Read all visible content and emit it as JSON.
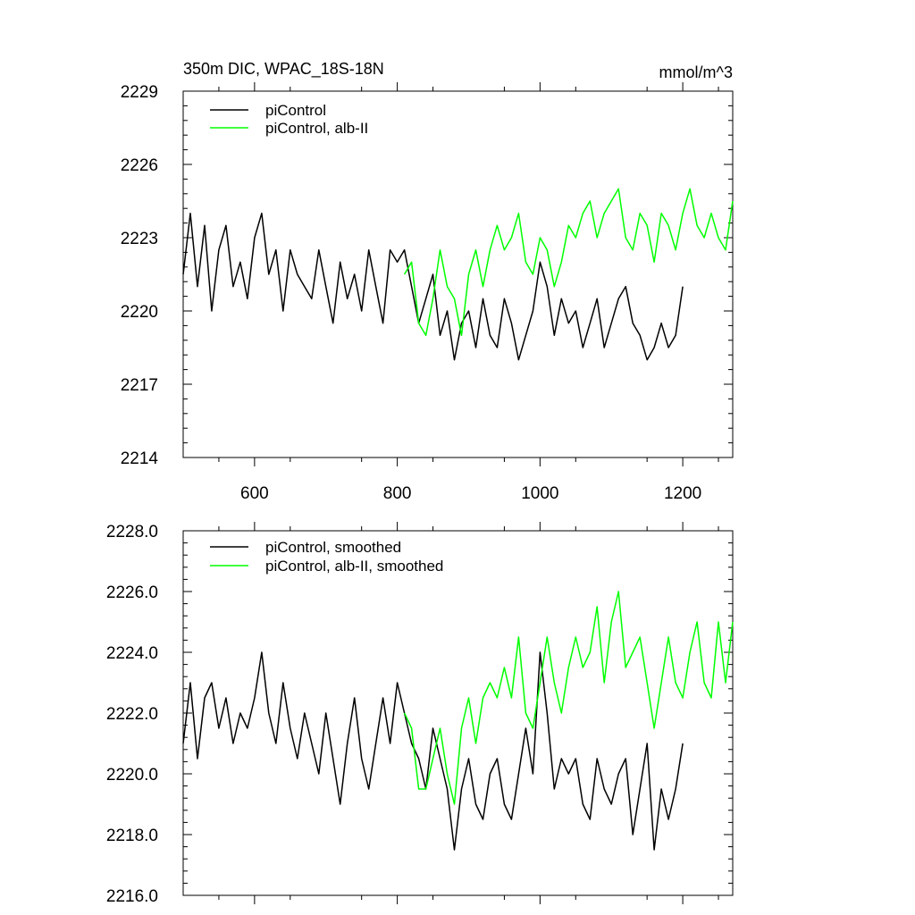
{
  "chart_data": [
    {
      "type": "line",
      "title": "350m DIC, WPAC_18S-18N",
      "units_label": "mmol/m^3",
      "xlim": [
        500,
        1270
      ],
      "ylim": [
        2214,
        2229
      ],
      "x_ticks": [
        600,
        800,
        1000,
        1200
      ],
      "x_tick_labels": [
        "600",
        "800",
        "1000",
        "1200"
      ],
      "y_ticks": [
        2214,
        2217,
        2220,
        2223,
        2226,
        2229
      ],
      "y_tick_labels": [
        "2214",
        "2217",
        "2220",
        "2223",
        "2226",
        "2229"
      ],
      "legend_position": "top-left",
      "series": [
        {
          "name": "piControl",
          "color": "#000000",
          "x": [
            500,
            510,
            520,
            530,
            540,
            550,
            560,
            570,
            580,
            590,
            600,
            610,
            620,
            630,
            640,
            650,
            660,
            670,
            680,
            690,
            700,
            710,
            720,
            730,
            740,
            750,
            760,
            770,
            780,
            790,
            800,
            810,
            820,
            830,
            840,
            850,
            860,
            870,
            880,
            890,
            900,
            910,
            920,
            930,
            940,
            950,
            960,
            970,
            980,
            990,
            1000,
            1010,
            1020,
            1030,
            1040,
            1050,
            1060,
            1070,
            1080,
            1090,
            1100,
            1110,
            1120,
            1130,
            1140,
            1150,
            1160,
            1170,
            1180,
            1190,
            1200
          ],
          "y": [
            2221.5,
            2224.0,
            2221.0,
            2223.5,
            2220.0,
            2222.5,
            2223.5,
            2221.0,
            2222.0,
            2220.5,
            2223.0,
            2224.0,
            2221.5,
            2222.5,
            2220.0,
            2222.5,
            2221.5,
            2221.0,
            2220.5,
            2222.5,
            2221.0,
            2219.5,
            2222.0,
            2220.5,
            2221.5,
            2220.0,
            2222.5,
            2221.0,
            2219.5,
            2222.5,
            2222.0,
            2222.5,
            2221.0,
            2219.5,
            2220.5,
            2221.5,
            2219.0,
            2220.0,
            2218.0,
            2219.5,
            2220.0,
            2218.5,
            2220.5,
            2219.0,
            2218.5,
            2220.5,
            2219.5,
            2218.0,
            2219.0,
            2220.0,
            2222.0,
            2221.0,
            2219.0,
            2220.5,
            2219.5,
            2220.0,
            2218.5,
            2219.5,
            2220.5,
            2218.5,
            2219.5,
            2220.5,
            2221.0,
            2219.5,
            2219.0,
            2218.0,
            2218.5,
            2219.5,
            2218.5,
            2219.0,
            2221.0
          ]
        },
        {
          "name": "piControl, alb-II",
          "color": "#00ff00",
          "x": [
            810,
            820,
            830,
            840,
            850,
            860,
            870,
            880,
            890,
            900,
            910,
            920,
            930,
            940,
            950,
            960,
            970,
            980,
            990,
            1000,
            1010,
            1020,
            1030,
            1040,
            1050,
            1060,
            1070,
            1080,
            1090,
            1100,
            1110,
            1120,
            1130,
            1140,
            1150,
            1160,
            1170,
            1180,
            1190,
            1200,
            1210,
            1220,
            1230,
            1240,
            1250,
            1260,
            1270
          ],
          "y": [
            2221.5,
            2222.0,
            2219.5,
            2219.0,
            2220.5,
            2222.5,
            2221.0,
            2220.5,
            2219.0,
            2221.5,
            2222.5,
            2221.0,
            2222.5,
            2223.5,
            2222.5,
            2223.0,
            2224.0,
            2222.0,
            2221.5,
            2223.0,
            2222.5,
            2221.0,
            2222.0,
            2223.5,
            2223.0,
            2224.0,
            2224.5,
            2223.0,
            2224.0,
            2224.5,
            2225.0,
            2223.0,
            2222.5,
            2224.0,
            2223.5,
            2222.0,
            2224.0,
            2223.5,
            2222.5,
            2224.0,
            2225.0,
            2223.5,
            2223.0,
            2224.0,
            2223.0,
            2222.5,
            2224.5
          ]
        }
      ]
    },
    {
      "type": "line",
      "xlim": [
        500,
        1270
      ],
      "ylim": [
        2216.0,
        2228.0
      ],
      "x_ticks": [
        600,
        800,
        1000,
        1200
      ],
      "y_ticks": [
        2216.0,
        2218.0,
        2220.0,
        2222.0,
        2224.0,
        2226.0,
        2228.0
      ],
      "y_tick_labels": [
        "2216.0",
        "2218.0",
        "2220.0",
        "2222.0",
        "2224.0",
        "2226.0",
        "2228.0"
      ],
      "legend_position": "top-left",
      "series": [
        {
          "name": "piControl, smoothed",
          "color": "#000000",
          "x": [
            500,
            510,
            520,
            530,
            540,
            550,
            560,
            570,
            580,
            590,
            600,
            610,
            620,
            630,
            640,
            650,
            660,
            670,
            680,
            690,
            700,
            710,
            720,
            730,
            740,
            750,
            760,
            770,
            780,
            790,
            800,
            810,
            820,
            830,
            840,
            850,
            860,
            870,
            880,
            890,
            900,
            910,
            920,
            930,
            940,
            950,
            960,
            970,
            980,
            990,
            1000,
            1010,
            1020,
            1030,
            1040,
            1050,
            1060,
            1070,
            1080,
            1090,
            1100,
            1110,
            1120,
            1130,
            1140,
            1150,
            1160,
            1170,
            1180,
            1190,
            1200
          ],
          "y": [
            2221.0,
            2223.0,
            2220.5,
            2222.5,
            2223.0,
            2221.5,
            2222.5,
            2221.0,
            2222.0,
            2221.5,
            2222.5,
            2224.0,
            2222.0,
            2221.0,
            2223.0,
            2221.5,
            2220.5,
            2222.0,
            2221.0,
            2220.0,
            2222.0,
            2220.5,
            2219.0,
            2221.0,
            2222.5,
            2220.5,
            2219.5,
            2221.0,
            2222.5,
            2221.0,
            2223.0,
            2222.0,
            2221.0,
            2220.5,
            2219.5,
            2221.5,
            2220.5,
            2219.5,
            2217.5,
            2219.5,
            2220.5,
            2219.0,
            2218.5,
            2220.0,
            2220.5,
            2219.0,
            2218.5,
            2220.0,
            2221.5,
            2220.0,
            2224.0,
            2222.0,
            2219.5,
            2220.5,
            2220.0,
            2220.5,
            2219.0,
            2218.5,
            2220.5,
            2219.5,
            2219.0,
            2220.0,
            2220.5,
            2218.0,
            2219.5,
            2221.0,
            2217.5,
            2219.5,
            2218.5,
            2219.5,
            2221.0
          ]
        },
        {
          "name": "piControl, alb-II, smoothed",
          "color": "#00ff00",
          "x": [
            810,
            820,
            830,
            840,
            850,
            860,
            870,
            880,
            890,
            900,
            910,
            920,
            930,
            940,
            950,
            960,
            970,
            980,
            990,
            1000,
            1010,
            1020,
            1030,
            1040,
            1050,
            1060,
            1070,
            1080,
            1090,
            1100,
            1110,
            1120,
            1130,
            1140,
            1150,
            1160,
            1170,
            1180,
            1190,
            1200,
            1210,
            1220,
            1230,
            1240,
            1250,
            1260,
            1270
          ],
          "y": [
            2222.0,
            2221.5,
            2219.5,
            2219.5,
            2220.5,
            2221.5,
            2220.0,
            2219.0,
            2221.5,
            2222.5,
            2221.0,
            2222.5,
            2223.0,
            2222.5,
            2223.5,
            2222.5,
            2224.5,
            2222.0,
            2221.5,
            2223.0,
            2224.5,
            2223.0,
            2222.0,
            2223.5,
            2224.5,
            2223.5,
            2224.0,
            2225.5,
            2223.0,
            2225.0,
            2226.0,
            2223.5,
            2224.0,
            2224.5,
            2223.0,
            2221.5,
            2223.0,
            2224.5,
            2223.0,
            2222.5,
            2224.0,
            2225.0,
            2223.0,
            2222.5,
            2225.0,
            2223.0,
            2225.0
          ]
        }
      ]
    }
  ]
}
